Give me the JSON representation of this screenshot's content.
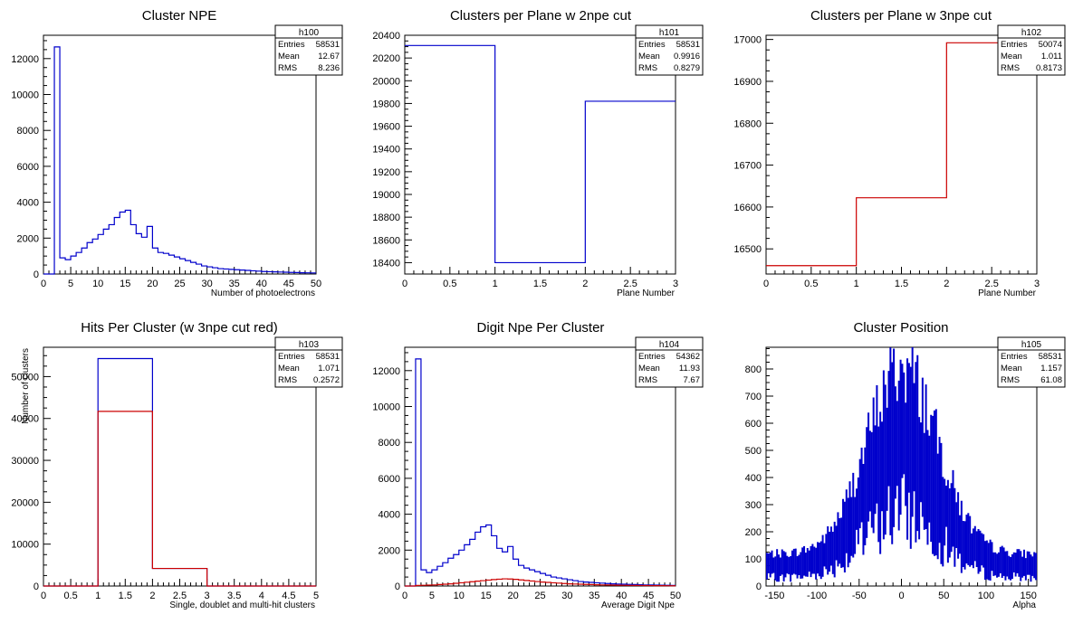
{
  "chart_data": [
    {
      "type": "histogram",
      "title": "Cluster NPE",
      "xlabel": "Number of photoelectrons",
      "ylabel": "",
      "xlim": [
        0,
        50
      ],
      "ylim": [
        0,
        13300
      ],
      "xticks": [
        0,
        5,
        10,
        15,
        20,
        25,
        30,
        35,
        40,
        45,
        50
      ],
      "yticks": [
        0,
        2000,
        4000,
        6000,
        8000,
        10000,
        12000
      ],
      "stats": {
        "name": "h100",
        "rows": [
          [
            "Entries",
            "58531"
          ],
          [
            "Mean",
            "12.67"
          ],
          [
            "RMS",
            "8.236"
          ]
        ]
      },
      "bin_edges_start": 0,
      "bin_width": 1,
      "series": [
        {
          "color": "#0000cc",
          "values": [
            0,
            0,
            12650,
            900,
            800,
            1000,
            1200,
            1450,
            1750,
            1950,
            2200,
            2500,
            2750,
            3150,
            3450,
            3550,
            2750,
            2250,
            2050,
            2650,
            1450,
            1200,
            1150,
            1050,
            950,
            850,
            750,
            650,
            550,
            450,
            400,
            350,
            300,
            280,
            260,
            240,
            220,
            200,
            180,
            160,
            140,
            130,
            120,
            110,
            100,
            90,
            80,
            70,
            65,
            60
          ]
        }
      ]
    },
    {
      "type": "histogram",
      "title": "Clusters per Plane w 2npe cut",
      "xlabel": "Plane Number",
      "ylabel": "",
      "xlim": [
        0,
        3
      ],
      "ylim": [
        18300,
        20400
      ],
      "xticks": [
        0,
        0.5,
        1,
        1.5,
        2,
        2.5,
        3
      ],
      "yticks": [
        18400,
        18600,
        18800,
        19000,
        19200,
        19400,
        19600,
        19800,
        20000,
        20200,
        20400
      ],
      "stats": {
        "name": "h101",
        "rows": [
          [
            "Entries",
            "58531"
          ],
          [
            "Mean",
            "0.9916"
          ],
          [
            "RMS",
            "0.8279"
          ]
        ]
      },
      "bin_edges_start": 0,
      "bin_width": 1,
      "series": [
        {
          "color": "#0000cc",
          "values": [
            20310,
            18400,
            19820
          ]
        }
      ]
    },
    {
      "type": "histogram",
      "title": "Clusters per Plane w 3npe cut",
      "xlabel": "Plane Number",
      "ylabel": "",
      "xlim": [
        0,
        3
      ],
      "ylim": [
        16440,
        17010
      ],
      "xticks": [
        0,
        0.5,
        1,
        1.5,
        2,
        2.5,
        3
      ],
      "yticks": [
        16500,
        16600,
        16700,
        16800,
        16900,
        17000
      ],
      "stats": {
        "name": "h102",
        "rows": [
          [
            "Entries",
            "50074"
          ],
          [
            "Mean",
            "1.011"
          ],
          [
            "RMS",
            "0.8173"
          ]
        ]
      },
      "bin_edges_start": 0,
      "bin_width": 1,
      "series": [
        {
          "color": "#cc0000",
          "values": [
            16460,
            16622,
            16992
          ]
        }
      ]
    },
    {
      "type": "histogram",
      "title": "Hits Per Cluster (w 3npe cut red)",
      "xlabel": "Single, doublet and multi-hit clusters",
      "ylabel": "Number of clusters",
      "xlim": [
        0,
        5
      ],
      "ylim": [
        0,
        57000
      ],
      "xticks": [
        0,
        0.5,
        1,
        1.5,
        2,
        2.5,
        3,
        3.5,
        4,
        4.5,
        5
      ],
      "yticks": [
        0,
        10000,
        20000,
        30000,
        40000,
        50000
      ],
      "stats": {
        "name": "h103",
        "rows": [
          [
            "Entries",
            "58531"
          ],
          [
            "Mean",
            "1.071"
          ],
          [
            "RMS",
            "0.2572"
          ]
        ]
      },
      "bin_edges_start": 0,
      "bin_width": 1,
      "series": [
        {
          "color": "#0000cc",
          "values": [
            0,
            54300,
            4200,
            0,
            0
          ]
        },
        {
          "color": "#cc0000",
          "values": [
            0,
            41700,
            4200,
            0,
            0
          ]
        }
      ]
    },
    {
      "type": "histogram",
      "title": "Digit Npe Per Cluster",
      "xlabel": "Average Digit Npe",
      "ylabel": "",
      "xlim": [
        0,
        50
      ],
      "ylim": [
        0,
        13300
      ],
      "xticks": [
        0,
        5,
        10,
        15,
        20,
        25,
        30,
        35,
        40,
        45,
        50
      ],
      "yticks": [
        0,
        2000,
        4000,
        6000,
        8000,
        10000,
        12000
      ],
      "stats": {
        "name": "h104",
        "rows": [
          [
            "Entries",
            "54362"
          ],
          [
            "Mean",
            "11.93"
          ],
          [
            "RMS",
            "7.67"
          ]
        ]
      },
      "bin_edges_start": 0,
      "bin_width": 1,
      "series": [
        {
          "color": "#0000cc",
          "values": [
            0,
            0,
            12650,
            900,
            750,
            900,
            1100,
            1300,
            1550,
            1750,
            2000,
            2300,
            2600,
            3000,
            3300,
            3400,
            2800,
            2100,
            1900,
            2200,
            1500,
            1150,
            1000,
            900,
            800,
            700,
            600,
            500,
            450,
            400,
            350,
            300,
            250,
            220,
            200,
            180,
            160,
            140,
            120,
            110,
            100,
            90,
            80,
            70,
            60,
            55,
            50,
            45,
            40,
            35
          ]
        },
        {
          "color": "#cc0000",
          "values": [
            0,
            0,
            30,
            40,
            50,
            60,
            80,
            100,
            120,
            150,
            180,
            210,
            240,
            270,
            300,
            330,
            360,
            380,
            400,
            390,
            370,
            340,
            310,
            280,
            250,
            220,
            200,
            180,
            160,
            140,
            120,
            110,
            100,
            90,
            80,
            70,
            60,
            55,
            50,
            45,
            40,
            35,
            30,
            28,
            25,
            22,
            20,
            18,
            15,
            12
          ]
        }
      ]
    },
    {
      "type": "histogram",
      "title": "Cluster Position",
      "xlabel": "Alpha",
      "ylabel": "",
      "xlim": [
        -160,
        160
      ],
      "ylim": [
        0,
        880
      ],
      "xticks": [
        -150,
        -100,
        -50,
        0,
        50,
        100,
        150
      ],
      "yticks": [
        0,
        100,
        200,
        300,
        400,
        500,
        600,
        700,
        800
      ],
      "stats": {
        "name": "h105",
        "rows": [
          [
            "Entries",
            "58531"
          ],
          [
            "Mean",
            "1.157"
          ],
          [
            "RMS",
            "61.08"
          ]
        ]
      },
      "gaussian": {
        "mean": 1.157,
        "sigma": 42,
        "peak": 740,
        "floor": 95
      },
      "series": [
        {
          "color": "#0000cc",
          "values": []
        }
      ]
    }
  ]
}
